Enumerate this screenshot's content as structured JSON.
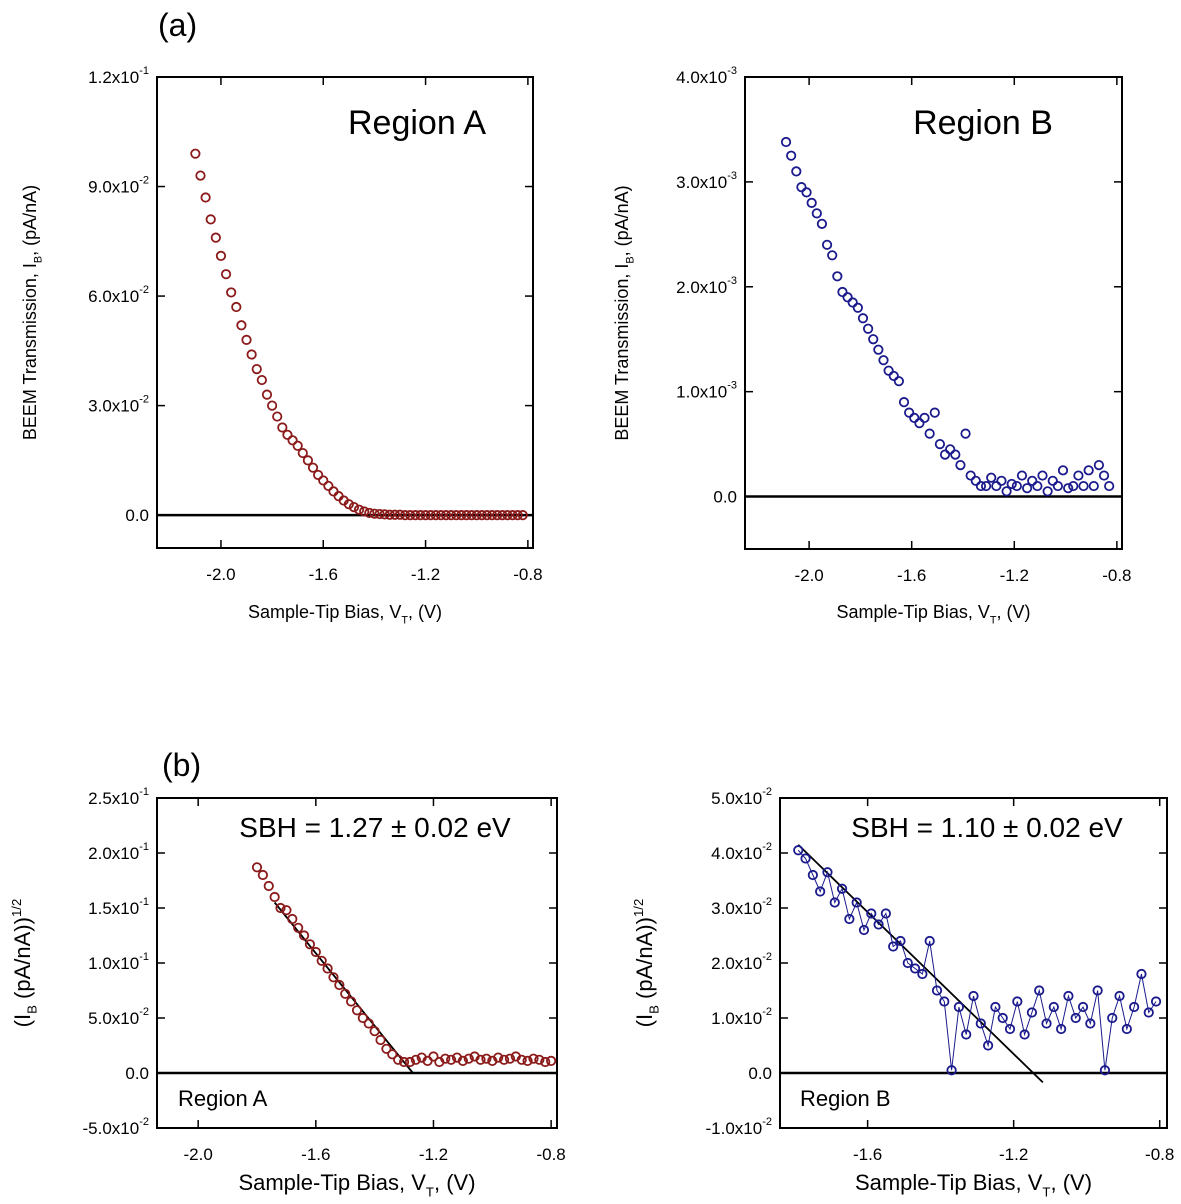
{
  "figure": {
    "panel_a_label": "(a)",
    "panel_b_label": "(b)",
    "colors": {
      "region_a": "#8b1a1a",
      "region_b": "#1a1a8c",
      "axis": "#000000",
      "fit": "#000000"
    }
  },
  "chart_data": [
    {
      "id": "a-left",
      "type": "scatter",
      "annotation": "Region A",
      "xlabel": "Sample-Tip Bias, V_T, (V)",
      "ylabel": "BEEM Transmission, I_B, (pA/nA)",
      "xlim": [
        -2.25,
        -0.78
      ],
      "ylim": [
        -0.009,
        0.12
      ],
      "x_ticks": [
        -2.0,
        -1.6,
        -1.2,
        -0.8
      ],
      "x_tick_labels": [
        "-2.0",
        "-1.6",
        "-1.2",
        "-0.8"
      ],
      "y_ticks": [
        0,
        0.03,
        0.06,
        0.09,
        0.12
      ],
      "y_tick_labels": [
        {
          "mant": "0.0",
          "exp": ""
        },
        {
          "mant": "3.0x10",
          "exp": "-2"
        },
        {
          "mant": "6.0x10",
          "exp": "-2"
        },
        {
          "mant": "9.0x10",
          "exp": "-2"
        },
        {
          "mant": "1.2x10",
          "exp": "-1"
        }
      ],
      "zero_line": true,
      "series": [
        {
          "color": "#8b1a1a",
          "marker": "circle",
          "x": [
            -2.1,
            -2.08,
            -2.06,
            -2.04,
            -2.02,
            -2.0,
            -1.98,
            -1.96,
            -1.94,
            -1.92,
            -1.9,
            -1.88,
            -1.86,
            -1.84,
            -1.82,
            -1.8,
            -1.78,
            -1.76,
            -1.74,
            -1.72,
            -1.7,
            -1.68,
            -1.66,
            -1.64,
            -1.62,
            -1.6,
            -1.58,
            -1.56,
            -1.54,
            -1.52,
            -1.5,
            -1.48,
            -1.46,
            -1.44,
            -1.42,
            -1.4,
            -1.38,
            -1.36,
            -1.34,
            -1.32,
            -1.3,
            -1.28,
            -1.26,
            -1.24,
            -1.22,
            -1.2,
            -1.18,
            -1.16,
            -1.14,
            -1.12,
            -1.1,
            -1.08,
            -1.06,
            -1.04,
            -1.02,
            -1.0,
            -0.98,
            -0.96,
            -0.94,
            -0.92,
            -0.9,
            -0.88,
            -0.86,
            -0.84,
            -0.82
          ],
          "y": [
            0.099,
            0.093,
            0.087,
            0.081,
            0.076,
            0.071,
            0.066,
            0.061,
            0.057,
            0.052,
            0.048,
            0.044,
            0.04,
            0.037,
            0.033,
            0.03,
            0.027,
            0.024,
            0.022,
            0.0205,
            0.019,
            0.017,
            0.015,
            0.013,
            0.011,
            0.0095,
            0.008,
            0.0065,
            0.0052,
            0.004,
            0.003,
            0.0022,
            0.0015,
            0.001,
            0.0006,
            0.0004,
            0.0003,
            0.0002,
            0.0001,
            0.0001,
            0.0001,
            0,
            0,
            0,
            0,
            0,
            0,
            0,
            0,
            0,
            0,
            0,
            0,
            0,
            0,
            0,
            0,
            0,
            0,
            0,
            0,
            0,
            0,
            0,
            0
          ]
        }
      ]
    },
    {
      "id": "a-right",
      "type": "scatter",
      "annotation": "Region B",
      "xlabel": "Sample-Tip Bias, V_T, (V)",
      "ylabel": "BEEM Transmission, I_B, (pA/nA)",
      "xlim": [
        -2.25,
        -0.78
      ],
      "ylim": [
        -0.0005,
        0.004
      ],
      "x_ticks": [
        -2.0,
        -1.6,
        -1.2,
        -0.8
      ],
      "x_tick_labels": [
        "-2.0",
        "-1.6",
        "-1.2",
        "-0.8"
      ],
      "y_ticks": [
        0,
        0.001,
        0.002,
        0.003,
        0.004
      ],
      "y_tick_labels": [
        {
          "mant": "0.0",
          "exp": ""
        },
        {
          "mant": "1.0x10",
          "exp": "-3"
        },
        {
          "mant": "2.0x10",
          "exp": "-3"
        },
        {
          "mant": "3.0x10",
          "exp": "-3"
        },
        {
          "mant": "4.0x10",
          "exp": "-3"
        }
      ],
      "zero_line": true,
      "series": [
        {
          "color": "#1a1a8c",
          "marker": "circle",
          "x": [
            -2.09,
            -2.07,
            -2.05,
            -2.03,
            -2.01,
            -1.99,
            -1.97,
            -1.95,
            -1.93,
            -1.91,
            -1.89,
            -1.87,
            -1.85,
            -1.83,
            -1.81,
            -1.79,
            -1.77,
            -1.75,
            -1.73,
            -1.71,
            -1.69,
            -1.67,
            -1.65,
            -1.63,
            -1.61,
            -1.59,
            -1.57,
            -1.55,
            -1.53,
            -1.51,
            -1.49,
            -1.47,
            -1.45,
            -1.43,
            -1.41,
            -1.39,
            -1.37,
            -1.35,
            -1.33,
            -1.31,
            -1.29,
            -1.27,
            -1.25,
            -1.23,
            -1.21,
            -1.19,
            -1.17,
            -1.15,
            -1.13,
            -1.11,
            -1.09,
            -1.07,
            -1.05,
            -1.03,
            -1.01,
            -0.99,
            -0.97,
            -0.95,
            -0.93,
            -0.91,
            -0.89,
            -0.87,
            -0.85,
            -0.83
          ],
          "y": [
            0.00338,
            0.00325,
            0.0031,
            0.00295,
            0.0029,
            0.0028,
            0.0027,
            0.0026,
            0.0024,
            0.0023,
            0.0021,
            0.00195,
            0.0019,
            0.00185,
            0.0018,
            0.0017,
            0.0016,
            0.0015,
            0.0014,
            0.0013,
            0.0012,
            0.00115,
            0.0011,
            0.0009,
            0.0008,
            0.00075,
            0.0007,
            0.00075,
            0.0006,
            0.0008,
            0.0005,
            0.0004,
            0.00045,
            0.0004,
            0.0003,
            0.0006,
            0.0002,
            0.00015,
            0.0001,
            0.0001,
            0.00018,
            0.0001,
            0.00015,
            5e-05,
            0.00012,
            0.0001,
            0.0002,
            8e-05,
            0.00015,
            0.0001,
            0.0002,
            5e-05,
            0.00015,
            0.0001,
            0.00025,
            8e-05,
            0.0001,
            0.0002,
            0.0001,
            0.00025,
            0.0001,
            0.0003,
            0.0002,
            0.0001
          ]
        }
      ]
    },
    {
      "id": "b-left",
      "type": "scatter",
      "annotation": "SBH = 1.27 ± 0.02 eV",
      "region_label": "Region A",
      "xlabel": "Sample-Tip Bias, V_T, (V)",
      "ylabel": "(I_B (pA/nA))^1/2",
      "xlim": [
        -2.14,
        -0.78
      ],
      "ylim": [
        -0.05,
        0.25
      ],
      "x_ticks": [
        -2.0,
        -1.6,
        -1.2,
        -0.8
      ],
      "x_tick_labels": [
        "-2.0",
        "-1.6",
        "-1.2",
        "-0.8"
      ],
      "y_ticks": [
        -0.05,
        0,
        0.05,
        0.1,
        0.15,
        0.2,
        0.25
      ],
      "y_tick_labels": [
        {
          "mant": "-5.0x10",
          "exp": "-2"
        },
        {
          "mant": "0.0",
          "exp": ""
        },
        {
          "mant": "5.0x10",
          "exp": "-2"
        },
        {
          "mant": "1.0x10",
          "exp": "-1"
        },
        {
          "mant": "1.5x10",
          "exp": "-1"
        },
        {
          "mant": "2.0x10",
          "exp": "-1"
        },
        {
          "mant": "2.5x10",
          "exp": "-1"
        }
      ],
      "zero_line": true,
      "fit_line": {
        "x": [
          -1.74,
          -1.27
        ],
        "y": [
          0.155,
          0
        ]
      },
      "series": [
        {
          "color": "#8b1a1a",
          "marker": "circle",
          "x": [
            -1.8,
            -1.78,
            -1.76,
            -1.74,
            -1.72,
            -1.7,
            -1.68,
            -1.66,
            -1.64,
            -1.62,
            -1.6,
            -1.58,
            -1.56,
            -1.54,
            -1.52,
            -1.5,
            -1.48,
            -1.46,
            -1.44,
            -1.42,
            -1.4,
            -1.38,
            -1.36,
            -1.34,
            -1.32,
            -1.3,
            -1.28,
            -1.26,
            -1.24,
            -1.22,
            -1.2,
            -1.18,
            -1.16,
            -1.14,
            -1.12,
            -1.1,
            -1.08,
            -1.06,
            -1.04,
            -1.02,
            -1.0,
            -0.98,
            -0.96,
            -0.94,
            -0.92,
            -0.9,
            -0.88,
            -0.86,
            -0.84,
            -0.82,
            -0.8
          ],
          "y": [
            0.187,
            0.18,
            0.17,
            0.16,
            0.15,
            0.148,
            0.14,
            0.132,
            0.125,
            0.117,
            0.11,
            0.102,
            0.095,
            0.087,
            0.08,
            0.072,
            0.065,
            0.057,
            0.05,
            0.045,
            0.038,
            0.03,
            0.022,
            0.017,
            0.012,
            0.01,
            0.01,
            0.012,
            0.014,
            0.011,
            0.015,
            0.01,
            0.013,
            0.012,
            0.014,
            0.011,
            0.013,
            0.015,
            0.012,
            0.013,
            0.011,
            0.014,
            0.012,
            0.013,
            0.015,
            0.012,
            0.011,
            0.013,
            0.012,
            0.01,
            0.011
          ]
        }
      ]
    },
    {
      "id": "b-right",
      "type": "scatter",
      "annotation": "SBH = 1.10 ± 0.02 eV",
      "region_label": "Region B",
      "xlabel": "Sample-Tip Bias, V_T, (V)",
      "ylabel": "(I_B (pA/nA))^1/2",
      "xlim": [
        -1.84,
        -0.78
      ],
      "ylim": [
        -0.01,
        0.05
      ],
      "x_ticks": [
        -1.6,
        -1.2,
        -0.8
      ],
      "x_tick_labels": [
        "-1.6",
        "-1.2",
        "-0.8"
      ],
      "y_ticks": [
        -0.01,
        0,
        0.01,
        0.02,
        0.03,
        0.04,
        0.05
      ],
      "y_tick_labels": [
        {
          "mant": "-1.0x10",
          "exp": "-2"
        },
        {
          "mant": "0.0",
          "exp": ""
        },
        {
          "mant": "1.0x10",
          "exp": "-2"
        },
        {
          "mant": "2.0x10",
          "exp": "-2"
        },
        {
          "mant": "3.0x10",
          "exp": "-2"
        },
        {
          "mant": "4.0x10",
          "exp": "-2"
        },
        {
          "mant": "5.0x10",
          "exp": "-2"
        }
      ],
      "zero_line": true,
      "fit_line": {
        "x": [
          -1.79,
          -1.12
        ],
        "y": [
          0.0415,
          -0.0017
        ]
      },
      "series": [
        {
          "color": "#1a1a8c",
          "marker": "circle",
          "connect": true,
          "x": [
            -1.79,
            -1.77,
            -1.75,
            -1.73,
            -1.71,
            -1.69,
            -1.67,
            -1.65,
            -1.63,
            -1.61,
            -1.59,
            -1.57,
            -1.55,
            -1.53,
            -1.51,
            -1.49,
            -1.47,
            -1.45,
            -1.43,
            -1.41,
            -1.39,
            -1.37,
            -1.35,
            -1.33,
            -1.31,
            -1.29,
            -1.27,
            -1.25,
            -1.23,
            -1.21,
            -1.19,
            -1.17,
            -1.15,
            -1.13,
            -1.11,
            -1.09,
            -1.07,
            -1.05,
            -1.03,
            -1.01,
            -0.99,
            -0.97,
            -0.95,
            -0.93,
            -0.91,
            -0.89,
            -0.87,
            -0.85,
            -0.83,
            -0.81
          ],
          "y": [
            0.0405,
            0.039,
            0.036,
            0.033,
            0.0365,
            0.031,
            0.0335,
            0.028,
            0.031,
            0.026,
            0.029,
            0.027,
            0.029,
            0.023,
            0.024,
            0.02,
            0.019,
            0.018,
            0.024,
            0.015,
            0.013,
            0.0005,
            0.012,
            0.007,
            0.014,
            0.009,
            0.005,
            0.012,
            0.01,
            0.008,
            0.013,
            0.007,
            0.011,
            0.015,
            0.009,
            0.012,
            0.008,
            0.014,
            0.01,
            0.012,
            0.009,
            0.015,
            0.0005,
            0.01,
            0.014,
            0.008,
            0.012,
            0.018,
            0.011,
            0.013
          ]
        }
      ]
    }
  ]
}
